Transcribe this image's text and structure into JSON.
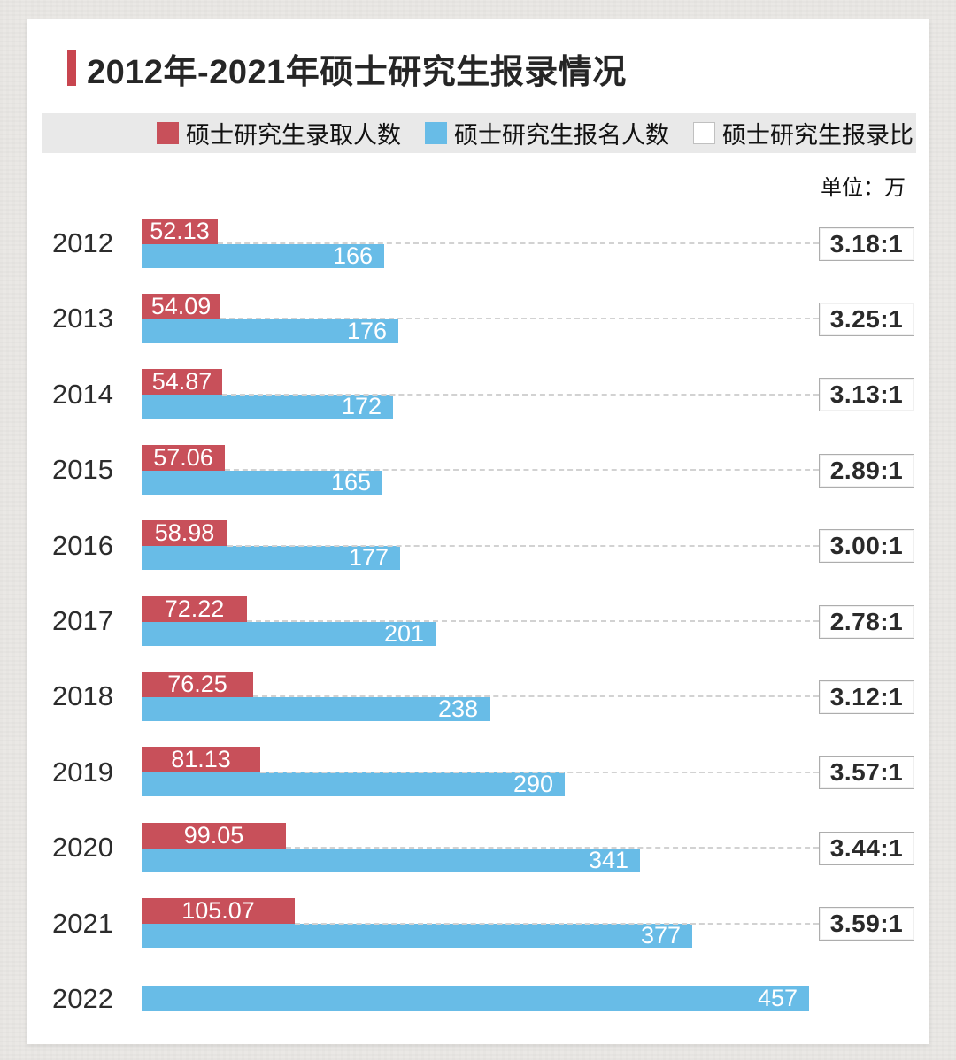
{
  "title": "2012年-2021年硕士研究生报录情况",
  "unit_label": "单位：万",
  "colors": {
    "admit_red": "#c8505a",
    "apply_blue": "#68bce7",
    "accent_red": "#c8454f",
    "legend_bg": "#e9e9e9",
    "ratio_box_border": "#adadad",
    "dotted_line": "#d2d2d2"
  },
  "legend": {
    "items": [
      {
        "label": "硕士研究生录取人数",
        "swatch": "red-square-icon"
      },
      {
        "label": "硕士研究生报名人数",
        "swatch": "blue-square-icon"
      },
      {
        "label": "硕士研究生报录比",
        "swatch": "outlined-square-icon"
      }
    ]
  },
  "chart_data": {
    "type": "bar",
    "orientation": "horizontal",
    "title": "2012年-2021年硕士研究生报录情况",
    "unit": "万",
    "xlim": [
      0,
      457
    ],
    "grid": false,
    "legend_position": "top",
    "categories": [
      "2012",
      "2013",
      "2014",
      "2015",
      "2016",
      "2017",
      "2018",
      "2019",
      "2020",
      "2021",
      "2022"
    ],
    "series": [
      {
        "name": "硕士研究生录取人数",
        "color": "#c8505a",
        "values": [
          52.13,
          54.09,
          54.87,
          57.06,
          58.98,
          72.22,
          76.25,
          81.13,
          99.05,
          105.07,
          null
        ]
      },
      {
        "name": "硕士研究生报名人数",
        "color": "#68bce7",
        "values": [
          166,
          176,
          172,
          165,
          177,
          201,
          238,
          290,
          341,
          377,
          457
        ]
      },
      {
        "name": "硕士研究生报录比",
        "values": [
          "3.18:1",
          "3.25:1",
          "3.13:1",
          "2.89:1",
          "3.00:1",
          "2.78:1",
          "3.12:1",
          "3.57:1",
          "3.44:1",
          "3.59:1",
          null
        ]
      }
    ]
  }
}
